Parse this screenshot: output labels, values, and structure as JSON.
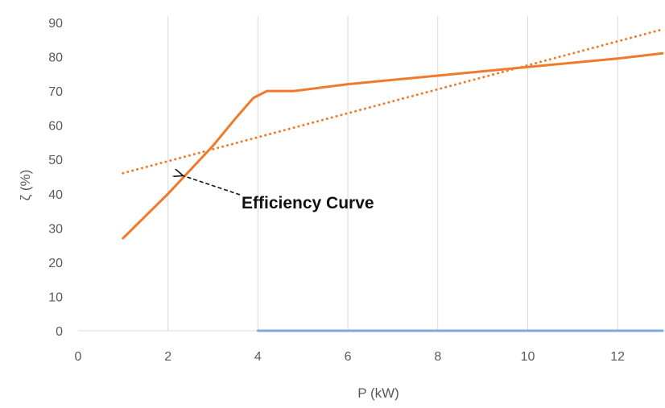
{
  "chart_data": {
    "type": "line",
    "title": "",
    "xlabel": "P (kW)",
    "ylabel": "ζ (%)",
    "xlim": [
      0,
      13
    ],
    "ylim": [
      0,
      90
    ],
    "x_ticks": [
      0,
      2,
      4,
      6,
      8,
      10,
      12
    ],
    "y_ticks": [
      0,
      10,
      20,
      30,
      40,
      50,
      60,
      70,
      80,
      90
    ],
    "grid": "vertical",
    "legend": "none",
    "series": [
      {
        "style": "solid",
        "color": "#F07A2A",
        "x": [
          1,
          2,
          3,
          3.5,
          3.9,
          4.2,
          4.5,
          4.8,
          6,
          8,
          10,
          12,
          13
        ],
        "y": [
          27,
          40,
          54,
          62,
          68,
          70,
          70,
          70,
          72,
          74.5,
          77,
          79.5,
          81
        ]
      },
      {
        "style": "dotted",
        "color": "#F07A2A",
        "x": [
          1,
          13
        ],
        "y": [
          46,
          88
        ]
      },
      {
        "style": "solid",
        "color": "#7FA7E0",
        "x": [
          4,
          13
        ],
        "y": [
          0,
          0
        ]
      }
    ],
    "annotations": [
      {
        "text": "Efficiency Curve",
        "x": 2.3,
        "y": 45.5
      }
    ]
  }
}
